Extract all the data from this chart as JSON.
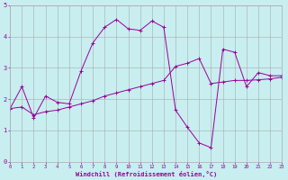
{
  "xlabel": "Windchill (Refroidissement éolien,°C)",
  "background_color": "#c8eef0",
  "line_color": "#990099",
  "grid_color": "#aaaaaa",
  "series1_x": [
    0,
    1,
    2,
    3,
    4,
    5,
    6,
    7,
    8,
    9,
    10,
    11,
    12,
    13,
    14,
    15,
    16,
    17,
    18,
    19,
    20,
    21,
    22,
    23
  ],
  "series1_y": [
    1.7,
    2.4,
    1.4,
    2.1,
    1.9,
    1.85,
    2.9,
    3.8,
    4.3,
    4.55,
    4.25,
    4.2,
    4.5,
    4.3,
    1.65,
    1.1,
    0.6,
    0.45,
    3.6,
    3.5,
    2.4,
    2.85,
    2.75,
    2.75
  ],
  "series2_x": [
    0,
    1,
    2,
    3,
    4,
    5,
    6,
    7,
    8,
    9,
    10,
    11,
    12,
    13,
    14,
    15,
    16,
    17,
    18,
    19,
    20,
    21,
    22,
    23
  ],
  "series2_y": [
    1.7,
    1.75,
    1.5,
    1.6,
    1.65,
    1.75,
    1.85,
    1.95,
    2.1,
    2.2,
    2.3,
    2.4,
    2.5,
    2.6,
    3.05,
    3.15,
    3.3,
    2.5,
    2.55,
    2.6,
    2.6,
    2.62,
    2.65,
    2.7
  ],
  "xlim": [
    0,
    23
  ],
  "ylim": [
    0,
    5
  ],
  "xticks": [
    0,
    1,
    2,
    3,
    4,
    5,
    6,
    7,
    8,
    9,
    10,
    11,
    12,
    13,
    14,
    15,
    16,
    17,
    18,
    19,
    20,
    21,
    22,
    23
  ],
  "yticks": [
    0,
    1,
    2,
    3,
    4,
    5
  ],
  "xlabel_fontsize": 5,
  "tick_fontsize_x": 4,
  "tick_fontsize_y": 5,
  "linewidth": 0.7,
  "markersize": 2.5,
  "markeredgewidth": 0.7
}
